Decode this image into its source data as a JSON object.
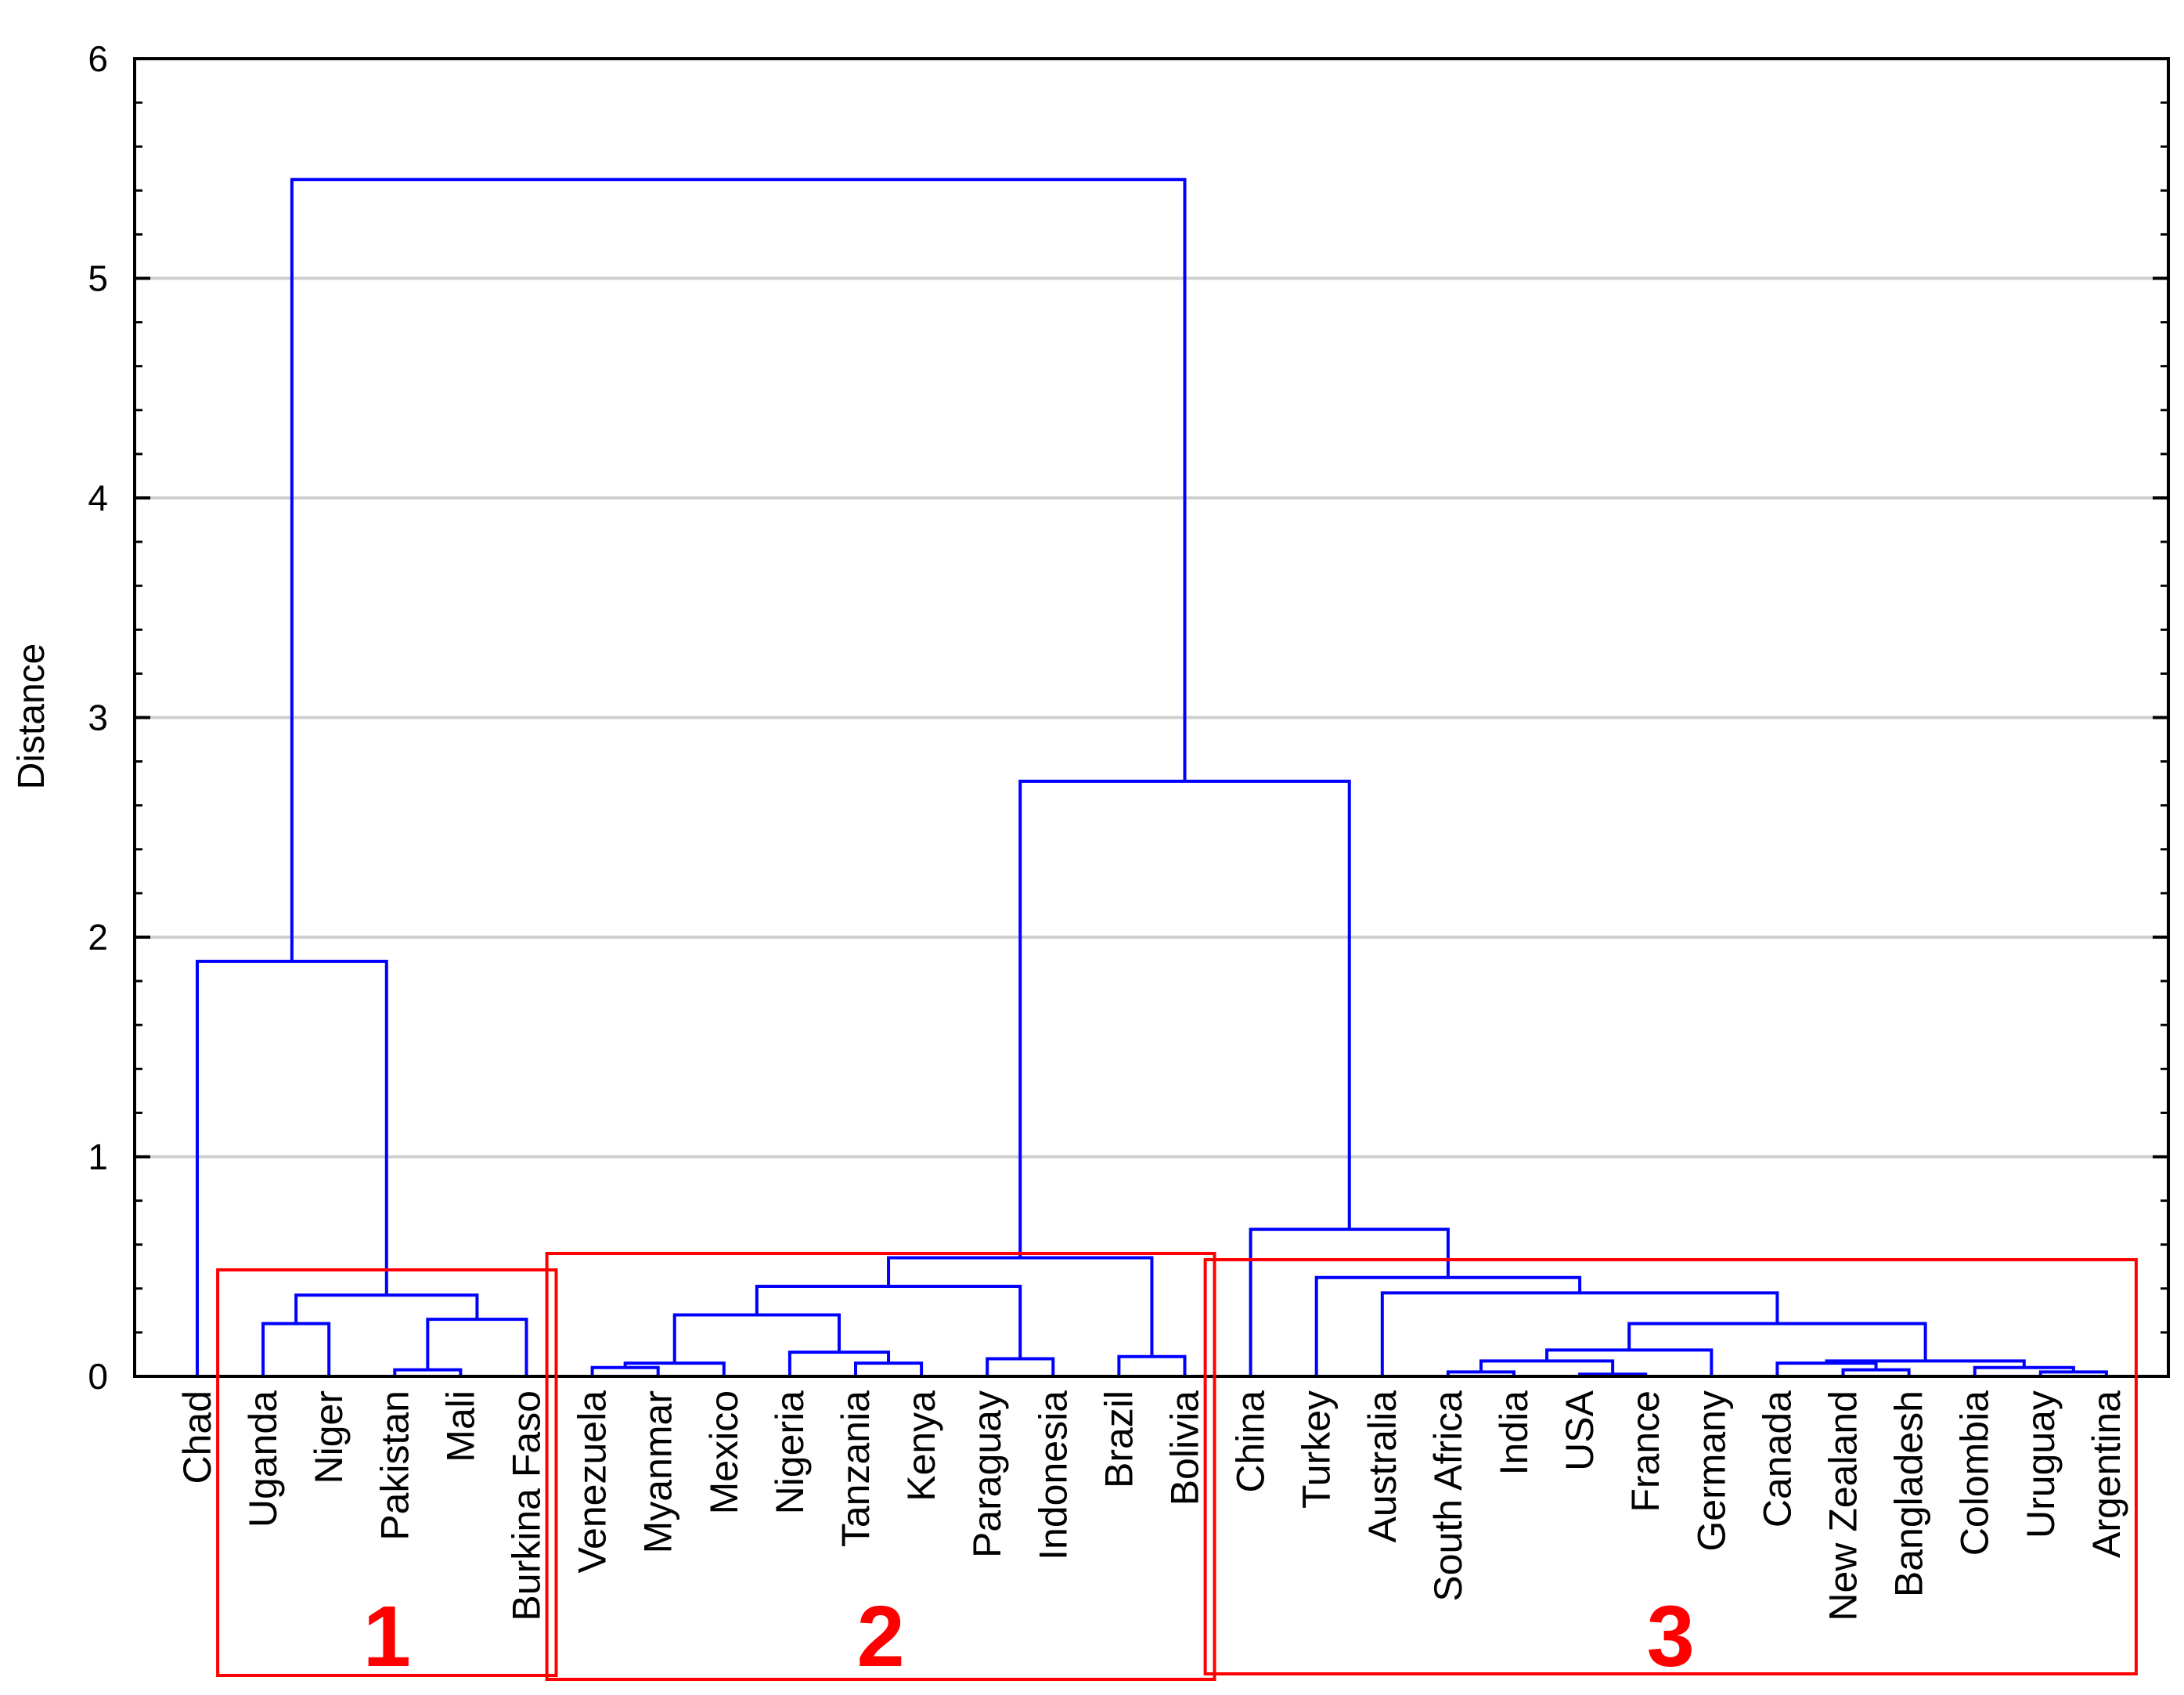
{
  "chart_data": {
    "type": "dendrogram",
    "ylabel": "Distance",
    "ylim": [
      0,
      6
    ],
    "yticks": [
      0,
      1,
      2,
      3,
      4,
      5,
      6
    ],
    "grid": true,
    "colors": {
      "links": "#0000ff",
      "clusters": "#ff0000",
      "grid": "#cfcfcf"
    },
    "leaves": [
      "Chad",
      "Uganda",
      "Niger",
      "Pakistan",
      "Mali",
      "Burkina Faso",
      "Venezuela",
      "Myanmar",
      "Mexico",
      "Nigeria",
      "Tanzania",
      "Kenya",
      "Paraguay",
      "Indonesia",
      "Brazil",
      "Bolivia",
      "China",
      "Turkey",
      "Australia",
      "South Africa",
      "India",
      "USA",
      "France",
      "Germany",
      "Canada",
      "New Zealand",
      "Bangladesh",
      "Colombia",
      "Uruguay",
      "Argentina"
    ],
    "merges": [
      {
        "a": "L:Pakistan",
        "b": "L:Mali",
        "height": 0.03
      },
      {
        "a": "L:Uganda",
        "b": "L:Niger",
        "height": 0.24
      },
      {
        "a": "M1",
        "b": "L:Burkina Faso",
        "height": 0.26
      },
      {
        "a": "M2",
        "b": "M3",
        "height": 0.37
      },
      {
        "a": "L:Chad",
        "b": "M4",
        "height": 1.89
      },
      {
        "a": "L:Venezuela",
        "b": "L:Myanmar",
        "height": 0.04
      },
      {
        "a": "M6",
        "b": "L:Mexico",
        "height": 0.06
      },
      {
        "a": "L:Tanzania",
        "b": "L:Kenya",
        "height": 0.06
      },
      {
        "a": "L:Nigeria",
        "b": "M8",
        "height": 0.11
      },
      {
        "a": "M7",
        "b": "M9",
        "height": 0.28
      },
      {
        "a": "L:Paraguay",
        "b": "L:Indonesia",
        "height": 0.08
      },
      {
        "a": "M10",
        "b": "M11",
        "height": 0.41
      },
      {
        "a": "L:Brazil",
        "b": "L:Bolivia",
        "height": 0.09
      },
      {
        "a": "M12",
        "b": "M13",
        "height": 0.54
      },
      {
        "a": "L:South Africa",
        "b": "L:India",
        "height": 0.02
      },
      {
        "a": "L:USA",
        "b": "L:France",
        "height": 0.01
      },
      {
        "a": "M15",
        "b": "M16",
        "height": 0.07
      },
      {
        "a": "M17",
        "b": "L:Germany",
        "height": 0.12
      },
      {
        "a": "L:New Zealand",
        "b": "L:Bangladesh",
        "height": 0.03
      },
      {
        "a": "L:Uruguay",
        "b": "L:Argentina",
        "height": 0.02
      },
      {
        "a": "L:Colombia",
        "b": "M20",
        "height": 0.04
      },
      {
        "a": "L:Canada",
        "b": "M19",
        "height": 0.06
      },
      {
        "a": "M22",
        "b": "M21",
        "height": 0.07
      },
      {
        "a": "M18",
        "b": "M23",
        "height": 0.24
      },
      {
        "a": "L:Australia",
        "b": "M24",
        "height": 0.38
      },
      {
        "a": "L:Turkey",
        "b": "M25",
        "height": 0.45
      },
      {
        "a": "L:China",
        "b": "M26",
        "height": 0.67
      },
      {
        "a": "M14",
        "b": "M27",
        "height": 2.71
      },
      {
        "a": "M5",
        "b": "M28",
        "height": 5.45
      }
    ],
    "clusters": [
      {
        "label": "1",
        "first": "Uganda",
        "last": "Burkina Faso"
      },
      {
        "label": "2",
        "first": "Venezuela",
        "last": "Bolivia"
      },
      {
        "label": "3",
        "first": "China",
        "last": "Argentina"
      }
    ]
  }
}
